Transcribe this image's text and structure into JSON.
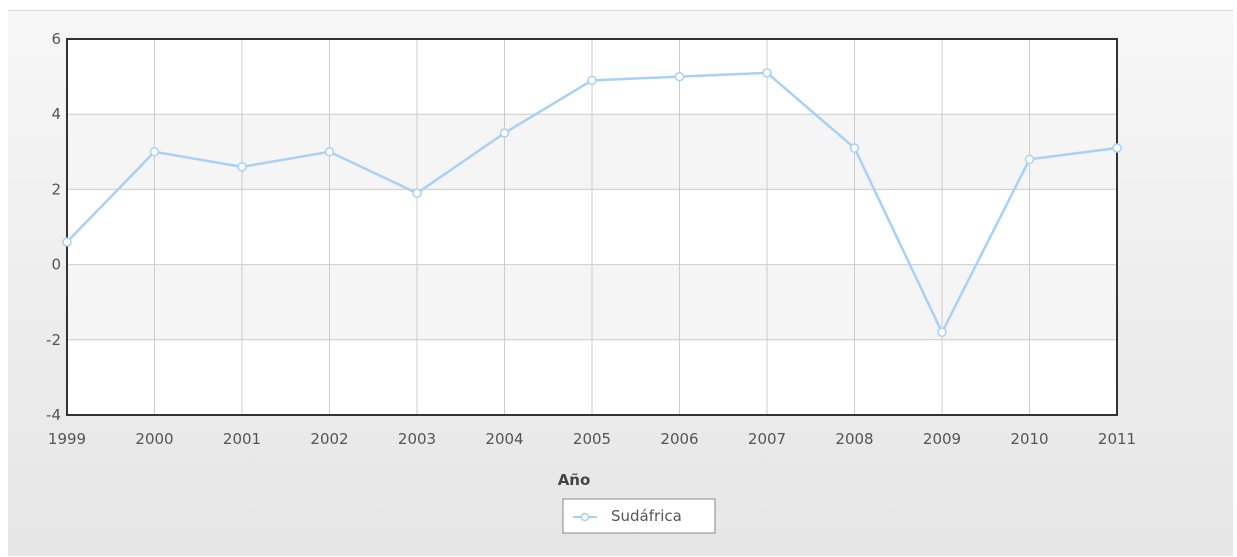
{
  "chart_data": {
    "type": "line",
    "title": "",
    "xlabel": "Año",
    "ylabel": "",
    "categories": [
      "1999",
      "2000",
      "2001",
      "2002",
      "2003",
      "2004",
      "2005",
      "2006",
      "2007",
      "2008",
      "2009",
      "2010",
      "2011"
    ],
    "series": [
      {
        "name": "Sudáfrica",
        "values": [
          0.6,
          3.0,
          2.6,
          3.0,
          1.9,
          3.5,
          4.9,
          5.0,
          5.1,
          3.1,
          -1.8,
          2.8,
          3.1
        ],
        "color": "#a9d0f5"
      }
    ],
    "ylim": [
      -4,
      6
    ],
    "yticks": [
      "-4",
      "-2",
      "0",
      "2",
      "4",
      "6"
    ],
    "grid": true,
    "legend": "bottom-center"
  },
  "colors": {
    "plot_band_light": "#ffffff",
    "plot_band_alt": "#f5f5f5",
    "grid": "#cccccc",
    "frame": "#333333"
  }
}
